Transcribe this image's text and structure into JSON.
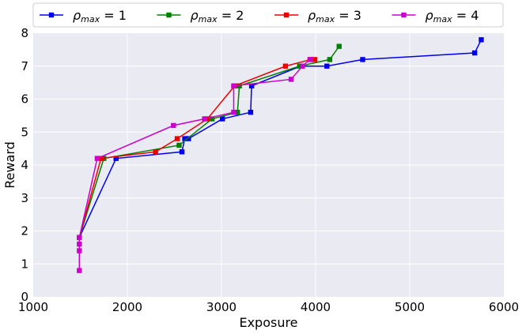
{
  "chart_data": {
    "type": "line",
    "xlabel": "Exposure",
    "ylabel": "Reward",
    "xlim": [
      1000,
      6000
    ],
    "ylim": [
      0,
      8
    ],
    "xticks": [
      1000,
      2000,
      3000,
      4000,
      5000,
      6000
    ],
    "yticks": [
      0,
      1,
      2,
      3,
      4,
      5,
      6,
      7,
      8
    ],
    "grid": true,
    "legend_placement": "top",
    "series": [
      {
        "name": "ρmax = 1",
        "label_main": "ρ",
        "label_sub": "max",
        "label_rest": " = 1",
        "color": "#0000ee",
        "points": [
          [
            1490,
            1.8
          ],
          [
            1880,
            4.2
          ],
          [
            2580,
            4.4
          ],
          [
            2610,
            4.8
          ],
          [
            2650,
            4.8
          ],
          [
            3010,
            5.4
          ],
          [
            3310,
            5.6
          ],
          [
            3320,
            6.4
          ],
          [
            3840,
            7.0
          ],
          [
            4120,
            7.0
          ],
          [
            4500,
            7.2
          ],
          [
            5690,
            7.4
          ],
          [
            5760,
            7.8
          ]
        ]
      },
      {
        "name": "ρmax = 2",
        "label_main": "ρ",
        "label_sub": "max",
        "label_rest": " = 2",
        "color": "#008000",
        "points": [
          [
            1490,
            1.8
          ],
          [
            1750,
            4.2
          ],
          [
            2550,
            4.6
          ],
          [
            2900,
            5.4
          ],
          [
            3170,
            5.6
          ],
          [
            3190,
            6.4
          ],
          [
            3830,
            7.0
          ],
          [
            4150,
            7.2
          ],
          [
            4250,
            7.6
          ]
        ]
      },
      {
        "name": "ρmax = 3",
        "label_main": "ρ",
        "label_sub": "max",
        "label_rest": " = 3",
        "color": "#ee0000",
        "points": [
          [
            1490,
            1.8
          ],
          [
            1720,
            4.2
          ],
          [
            2300,
            4.4
          ],
          [
            2530,
            4.8
          ],
          [
            2850,
            5.4
          ],
          [
            3140,
            6.4
          ],
          [
            3680,
            7.0
          ],
          [
            3950,
            7.2
          ],
          [
            3990,
            7.2
          ]
        ]
      },
      {
        "name": "ρmax = 4",
        "label_main": "ρ",
        "label_sub": "max",
        "label_rest": " = 4",
        "color": "#cc00cc",
        "points": [
          [
            1490,
            0.8
          ],
          [
            1490,
            1.4
          ],
          [
            1490,
            1.6
          ],
          [
            1490,
            1.8
          ],
          [
            1680,
            4.2
          ],
          [
            2490,
            5.2
          ],
          [
            2820,
            5.4
          ],
          [
            3130,
            5.6
          ],
          [
            3130,
            6.4
          ],
          [
            3740,
            6.6
          ],
          [
            3860,
            7.0
          ],
          [
            3940,
            7.2
          ]
        ]
      }
    ]
  }
}
